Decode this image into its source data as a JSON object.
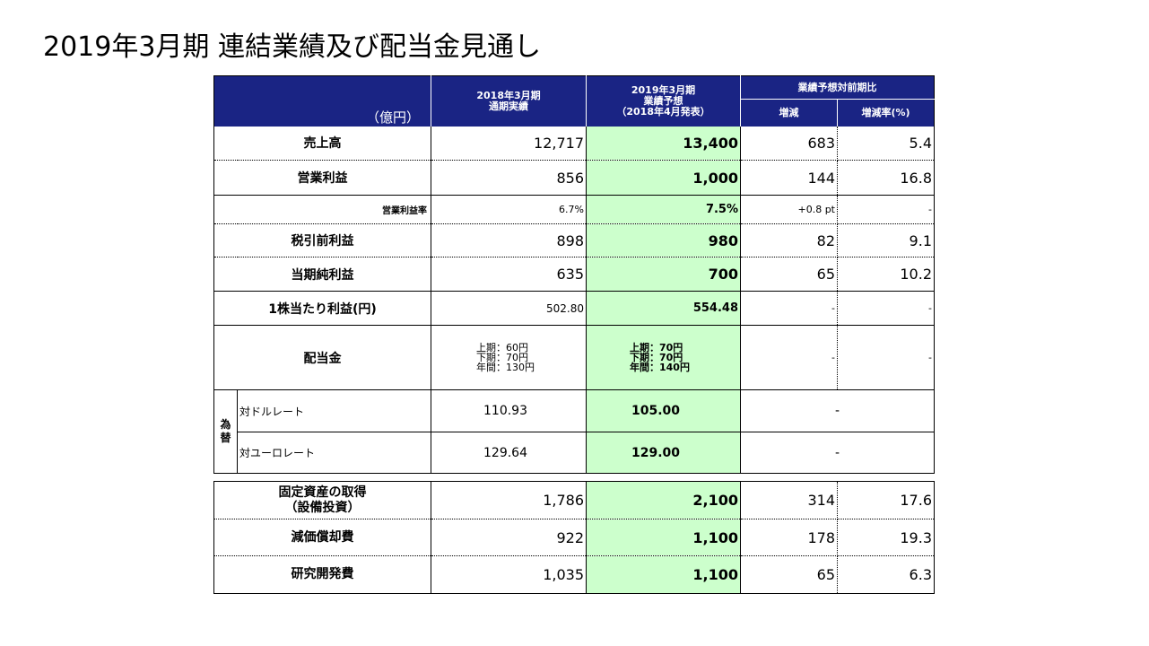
{
  "title": "2019年3月期 連結業績及び配当金見通し",
  "header": {
    "unit": "（億円）",
    "col_actual_line1": "2018年3月期",
    "col_actual_line2": "通期実績",
    "col_forecast_line1": "2019年3月期",
    "col_forecast_line2": "業績予想",
    "col_forecast_line3": "（2018年4月発表）",
    "col_compare": "業績予想対前期比",
    "col_change": "増減",
    "col_change_rate": "増減率(%)"
  },
  "rows": [
    {
      "label": "売上高",
      "actual": "12,717",
      "forecast": "13,400",
      "change": "683",
      "rate": "5.4"
    },
    {
      "label": "営業利益",
      "actual": "856",
      "forecast": "1,000",
      "change": "144",
      "rate": "16.8"
    },
    {
      "label": "営業利益率",
      "actual": "6.7%",
      "forecast": "7.5%",
      "change": "+0.8 pt",
      "rate": "-"
    },
    {
      "label": "税引前利益",
      "actual": "898",
      "forecast": "980",
      "change": "82",
      "rate": "9.1"
    },
    {
      "label": "当期純利益",
      "actual": "635",
      "forecast": "700",
      "change": "65",
      "rate": "10.2"
    },
    {
      "label": "1株当たり利益(円)",
      "actual": "502.80",
      "forecast": "554.48",
      "change": "-",
      "rate": "-"
    }
  ],
  "dividend": {
    "label": "配当金",
    "actual": [
      "上期：60円",
      "下期：70円",
      "年間：130円"
    ],
    "forecast": [
      "上期：70円",
      "下期：70円",
      "年間：140円"
    ],
    "change": "-",
    "rate": "-"
  },
  "fx": {
    "side_label_1": "為",
    "side_label_2": "替",
    "rows": [
      {
        "label": "対ドルレート",
        "actual": "110.93",
        "forecast": "105.00",
        "compare": "-"
      },
      {
        "label": "対ユーロレート",
        "actual": "129.64",
        "forecast": "129.00",
        "compare": "-"
      }
    ]
  },
  "capex": [
    {
      "label_line1": "固定資産の取得",
      "label_line2": "（設備投資）",
      "actual": "1,786",
      "forecast": "2,100",
      "change": "314",
      "rate": "17.6"
    },
    {
      "label_line1": "減価償却費",
      "label_line2": "",
      "actual": "922",
      "forecast": "1,100",
      "change": "178",
      "rate": "19.3"
    },
    {
      "label_line1": "研究開発費",
      "label_line2": "",
      "actual": "1,035",
      "forecast": "1,100",
      "change": "65",
      "rate": "6.3"
    }
  ],
  "colors": {
    "header_bg": "#1a2484",
    "forecast_bg": "#ccffcc"
  }
}
